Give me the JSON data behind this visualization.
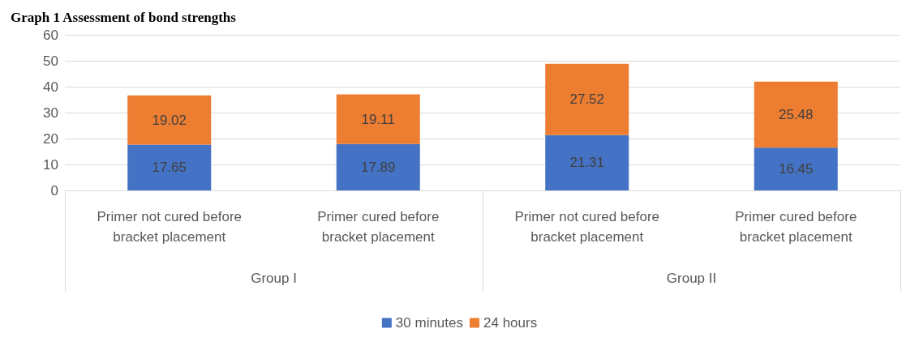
{
  "chart_data": {
    "type": "bar",
    "title": "Graph 1 Assessment of bond strengths",
    "stacked": true,
    "categories": [
      "Primer not cured before bracket placement",
      "Primer cured before bracket placement",
      "Primer not cured before bracket placement",
      "Primer cured before bracket placement"
    ],
    "series": [
      {
        "name": "30 minutes",
        "color": "#4472c4",
        "values": [
          17.65,
          17.89,
          21.31,
          16.45
        ]
      },
      {
        "name": "24 hours",
        "color": "#ed7d31",
        "values": [
          19.02,
          19.11,
          27.52,
          25.48
        ]
      }
    ],
    "annotations": [
      "Group I",
      "Group II"
    ],
    "ylim": [
      0,
      60
    ],
    "yticks": [
      0,
      10,
      20,
      30,
      40,
      50,
      60
    ],
    "grid": "y",
    "legend": "bottom",
    "data_labels": true
  }
}
